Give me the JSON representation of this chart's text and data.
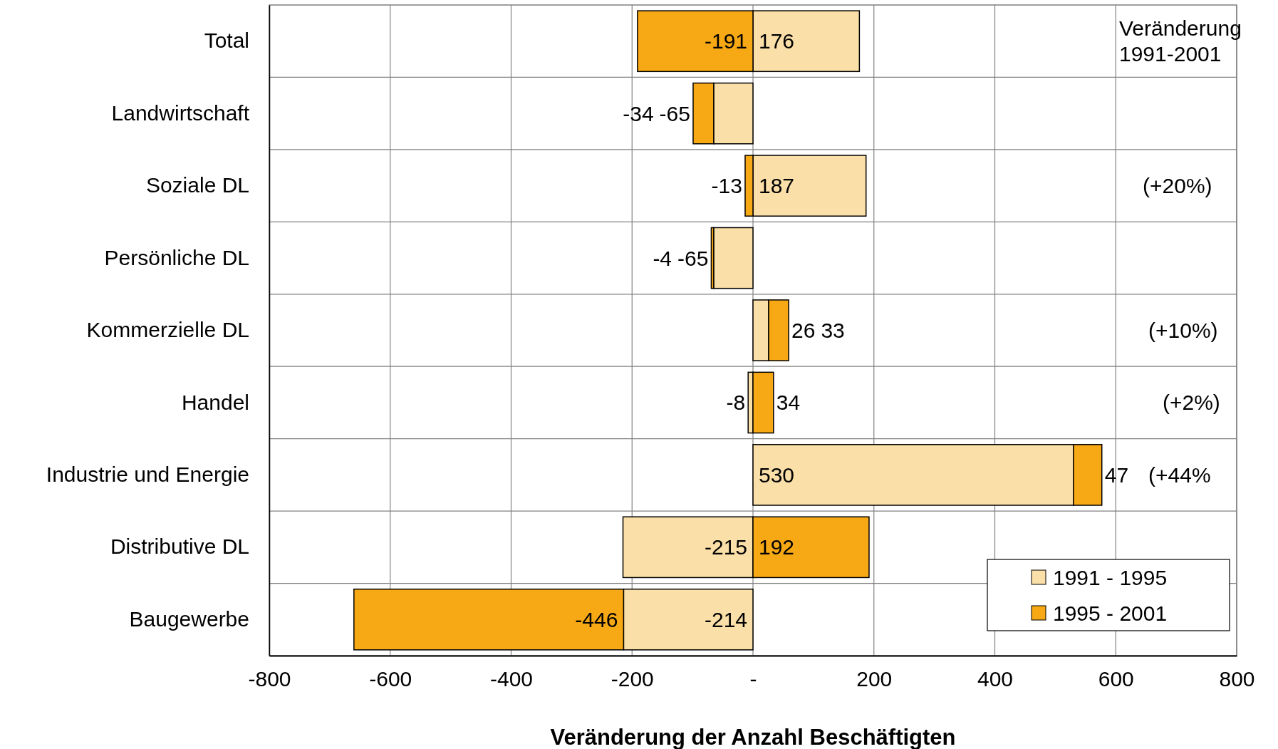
{
  "chart_data": {
    "type": "bar",
    "orientation": "horizontal",
    "stacked": true,
    "categories": [
      "Total",
      "Landwirtschaft",
      "Soziale DL",
      "Persönliche DL",
      "Kommerzielle DL",
      "Handel",
      "Industrie und Energie",
      "Distributive DL",
      "Baugewerbe"
    ],
    "series": [
      {
        "name": "1991 - 1995",
        "color": "#fadfa8",
        "values": [
          176,
          -65,
          187,
          -65,
          26,
          -8,
          530,
          -215,
          -214
        ]
      },
      {
        "name": "1995 - 2001",
        "color": "#f7a815",
        "values": [
          -191,
          -34,
          -13,
          -4,
          33,
          34,
          47,
          192,
          -446
        ]
      }
    ],
    "xlim": [
      -800,
      800
    ],
    "xticks": [
      -800,
      -600,
      -400,
      -200,
      {
        "value": 0,
        "label": "-"
      },
      200,
      400,
      600,
      800
    ],
    "xlabel": "Veränderung der Anzahl Beschäftigten",
    "grid": true,
    "legend": "bottom right",
    "data_labels": true,
    "annotations": [
      "Veränderung 1991-2001",
      "(+20%)",
      "(+10%)",
      "(+2%)",
      "(+44%"
    ]
  }
}
